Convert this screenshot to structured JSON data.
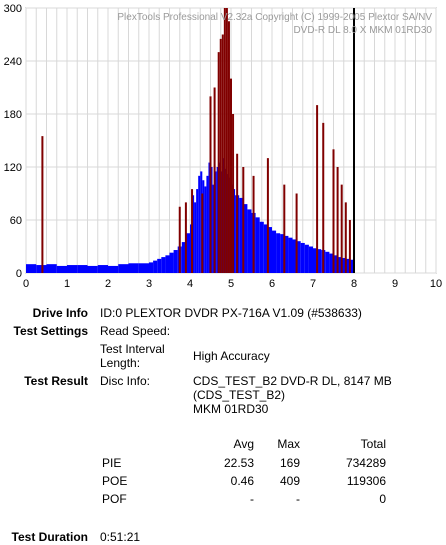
{
  "chart_data": {
    "type": "bar",
    "title": "PlexTools Professional V2.32a Copyright (C) 1999-2005 Plextor SA/NV",
    "subtitle": "DVD-R DL   8.0 X   MKM 01RD30",
    "xlim": [
      0,
      10
    ],
    "ylim": [
      0,
      300
    ],
    "x_ticks": [
      "0",
      "1",
      "2",
      "3",
      "4",
      "5",
      "6",
      "7",
      "8",
      "9",
      "10"
    ],
    "y_ticks": [
      "300",
      "240",
      "180",
      "120",
      "60",
      "0"
    ],
    "grid": true,
    "end_marker_x": 8.0,
    "series": [
      {
        "name": "PIE",
        "color": "#0000ff",
        "x": [
          0.0,
          0.25,
          0.5,
          0.75,
          1.0,
          1.25,
          1.5,
          1.75,
          2.0,
          2.25,
          2.5,
          2.75,
          3.0,
          3.1,
          3.2,
          3.3,
          3.4,
          3.5,
          3.6,
          3.7,
          3.8,
          3.9,
          4.0,
          4.05,
          4.1,
          4.15,
          4.2,
          4.25,
          4.3,
          4.35,
          4.4,
          4.45,
          4.5,
          4.55,
          4.6,
          4.65,
          4.7,
          4.75,
          4.8,
          4.85,
          4.9,
          4.95,
          5.0,
          5.05,
          5.1,
          5.2,
          5.3,
          5.4,
          5.5,
          5.6,
          5.7,
          5.8,
          5.9,
          6.0,
          6.1,
          6.2,
          6.3,
          6.4,
          6.5,
          6.6,
          6.7,
          6.8,
          6.9,
          7.0,
          7.1,
          7.2,
          7.3,
          7.4,
          7.5,
          7.6,
          7.7,
          7.8,
          7.9,
          8.0
        ],
        "y": [
          10,
          9,
          10,
          8,
          9,
          9,
          8,
          9,
          8,
          10,
          11,
          11,
          12,
          14,
          16,
          18,
          20,
          23,
          26,
          30,
          35,
          45,
          55,
          88,
          80,
          95,
          110,
          115,
          105,
          98,
          110,
          125,
          120,
          100,
          115,
          120,
          125,
          115,
          130,
          118,
          112,
          108,
          100,
          95,
          88,
          85,
          78,
          72,
          68,
          63,
          58,
          55,
          52,
          48,
          45,
          44,
          42,
          40,
          38,
          36,
          34,
          32,
          30,
          28,
          27,
          26,
          24,
          22,
          20,
          18,
          17,
          16,
          15,
          14
        ]
      },
      {
        "name": "PIE spikes",
        "color": "#800000",
        "x": [
          0.4,
          3.75,
          3.9,
          4.05,
          4.3,
          4.5,
          4.6,
          4.7,
          4.75,
          4.8,
          4.85,
          4.9,
          4.95,
          5.0,
          5.05,
          5.15,
          5.3,
          5.55,
          5.9,
          6.3,
          6.6,
          7.1,
          7.25,
          7.5,
          7.6,
          7.7,
          7.8,
          7.9,
          8.0
        ],
        "y": [
          155,
          75,
          80,
          95,
          90,
          200,
          210,
          250,
          265,
          270,
          300,
          300,
          285,
          220,
          180,
          135,
          120,
          110,
          130,
          100,
          90,
          190,
          170,
          140,
          120,
          100,
          80,
          60,
          300
        ]
      }
    ]
  },
  "info": {
    "drive_label": "Drive Info",
    "drive_value": "ID:0 PLEXTOR DVDR PX-716A V1.09 (#538633)",
    "settings_label": "Test Settings",
    "read_speed_label": "Read Speed:",
    "interval_label_1": "Test Interval",
    "interval_label_2": "Length:",
    "interval_value": "High Accuracy",
    "result_label": "Test Result",
    "disc_info_label": "Disc Info:",
    "disc_line1": "CDS_TEST_B2 DVD-R DL, 8147 MB",
    "disc_line2": "(CDS_TEST_B2)",
    "disc_line3": "MKM 01RD30",
    "duration_label": "Test Duration",
    "duration_value": "0:51:21"
  },
  "stats": {
    "headers": [
      "Avg",
      "Max",
      "Total"
    ],
    "rows": [
      {
        "name": "PIE",
        "avg": "22.53",
        "max": "169",
        "total": "734289"
      },
      {
        "name": "POE",
        "avg": "0.46",
        "max": "409",
        "total": "119306"
      },
      {
        "name": "POF",
        "avg": "-",
        "max": "-",
        "total": "0"
      }
    ]
  }
}
